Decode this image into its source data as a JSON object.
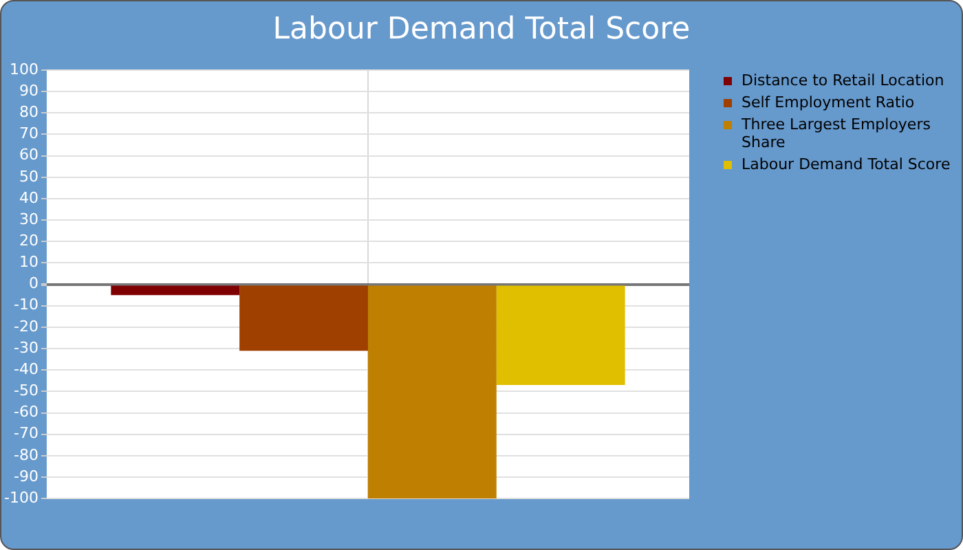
{
  "chart_data": {
    "type": "bar",
    "title": "Labour Demand Total Score",
    "categories": [
      null
    ],
    "series": [
      {
        "name": "Distance to Retail Location",
        "color": "#7f0000",
        "values": [
          -5
        ]
      },
      {
        "name": "Self Employment Ratio",
        "color": "#9f3f00",
        "values": [
          -31
        ]
      },
      {
        "name": "Three Largest Employers Share",
        "color": "#bf7f00",
        "values": [
          -100
        ]
      },
      {
        "name": "Labour Demand Total Score",
        "color": "#dfbf00",
        "values": [
          -47
        ]
      }
    ],
    "ylim": [
      -100,
      100
    ],
    "yticks": [
      -100,
      -90,
      -80,
      -70,
      -60,
      -50,
      -40,
      -30,
      -20,
      -10,
      0,
      10,
      20,
      30,
      40,
      50,
      60,
      70,
      80,
      90,
      100
    ],
    "grid": true,
    "legend": "right"
  }
}
